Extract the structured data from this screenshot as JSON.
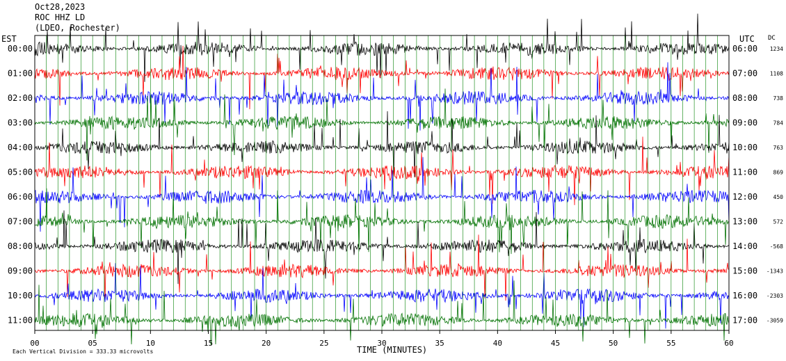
{
  "header": {
    "date": "Oct28,2023",
    "station": "ROC HHZ LD",
    "location": "(LDEO, Rochester)"
  },
  "left_axis_title": "EST",
  "right_axis_title": "UTC",
  "dc_title": "DC",
  "footer_note": "Each Vertical Division = 333.33 microvolts",
  "colors": {
    "black": "#000000",
    "red": "#ff0000",
    "blue": "#0000ff",
    "green": "#007000",
    "grid": "#008000"
  },
  "chart_data": {
    "type": "line",
    "title": "",
    "xlabel": "TIME (MINUTES)",
    "xlim": [
      0,
      60
    ],
    "x_ticks": [
      "00",
      "05",
      "10",
      "15",
      "20",
      "25",
      "30",
      "35",
      "40",
      "45",
      "50",
      "55",
      "60"
    ],
    "rows": [
      {
        "est": "00:00",
        "utc": "06:00",
        "dc": "1234",
        "color": "black"
      },
      {
        "est": "01:00",
        "utc": "07:00",
        "dc": "1108",
        "color": "red"
      },
      {
        "est": "02:00",
        "utc": "08:00",
        "dc": "738",
        "color": "blue"
      },
      {
        "est": "03:00",
        "utc": "09:00",
        "dc": "784",
        "color": "green"
      },
      {
        "est": "04:00",
        "utc": "10:00",
        "dc": "763",
        "color": "black"
      },
      {
        "est": "05:00",
        "utc": "11:00",
        "dc": "869",
        "color": "red"
      },
      {
        "est": "06:00",
        "utc": "12:00",
        "dc": "450",
        "color": "blue"
      },
      {
        "est": "07:00",
        "utc": "13:00",
        "dc": "572",
        "color": "green"
      },
      {
        "est": "08:00",
        "utc": "14:00",
        "dc": "-568",
        "color": "black"
      },
      {
        "est": "09:00",
        "utc": "15:00",
        "dc": "-1343",
        "color": "red"
      },
      {
        "est": "10:00",
        "utc": "16:00",
        "dc": "-2303",
        "color": "blue"
      },
      {
        "est": "11:00",
        "utc": "17:00",
        "dc": "-3059",
        "color": "green"
      }
    ]
  }
}
